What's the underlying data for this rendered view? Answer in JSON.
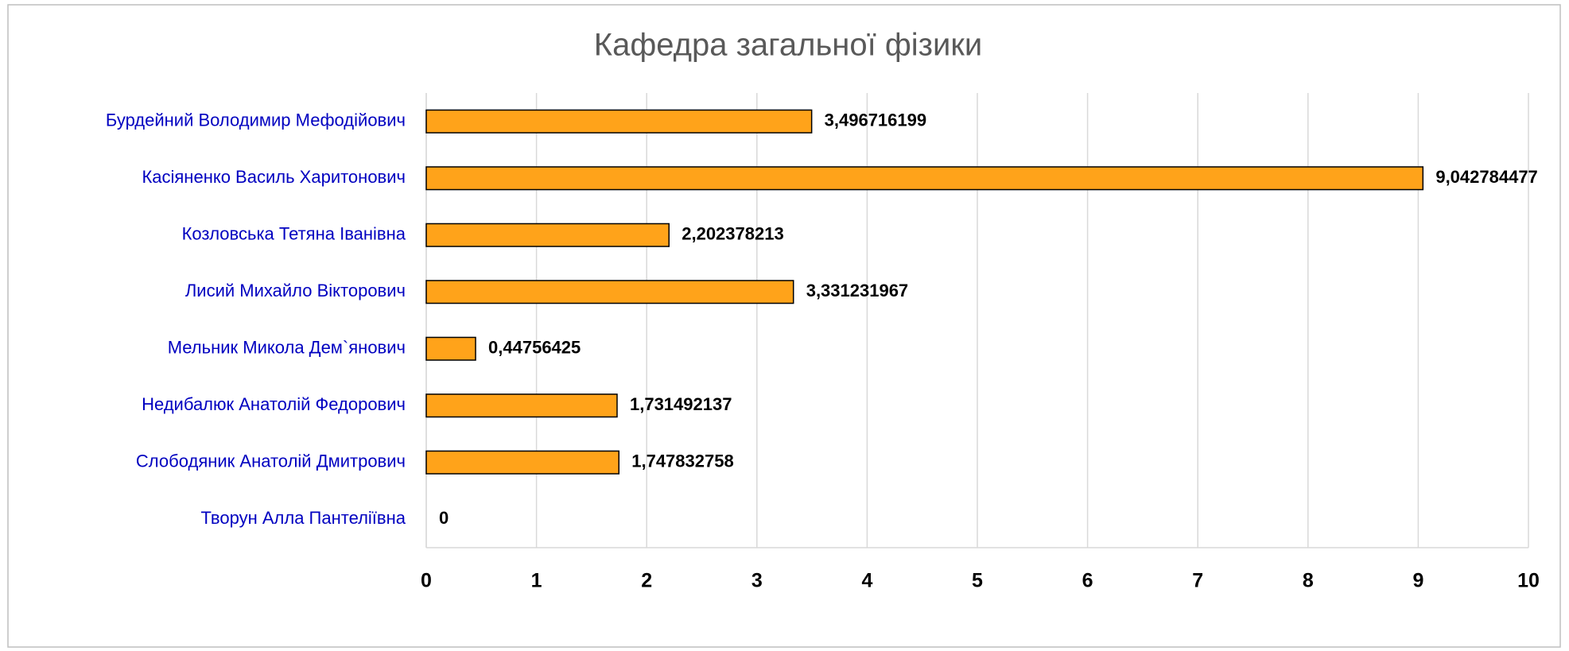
{
  "chart_data": {
    "type": "bar",
    "orientation": "horizontal",
    "title": "Кафедра загальної фізики",
    "categories": [
      "Бурдейний Володимир Мефодійович",
      "Касіяненко Василь Харитонович",
      "Козловська Тетяна Іванівна",
      "Лисий Михайло Вікторович",
      "Мельник Микола Дем`янович",
      "Недибалюк Анатолій Федорович",
      "Слободяник Анатолій Дмитрович",
      "Творун Алла Пантеліївна"
    ],
    "values": [
      3.496716199,
      9.042784477,
      2.202378213,
      3.331231967,
      0.44756425,
      1.731492137,
      1.747832758,
      0
    ],
    "value_labels": [
      "3,496716199",
      "9,042784477",
      "2,202378213",
      "3,331231967",
      "0,44756425",
      "1,731492137",
      "1,747832758",
      "0"
    ],
    "color": "#ffa31a",
    "xlim": [
      0,
      10
    ],
    "xticks": [
      0,
      1,
      2,
      3,
      4,
      5,
      6,
      7,
      8,
      9,
      10
    ],
    "grid": true
  }
}
